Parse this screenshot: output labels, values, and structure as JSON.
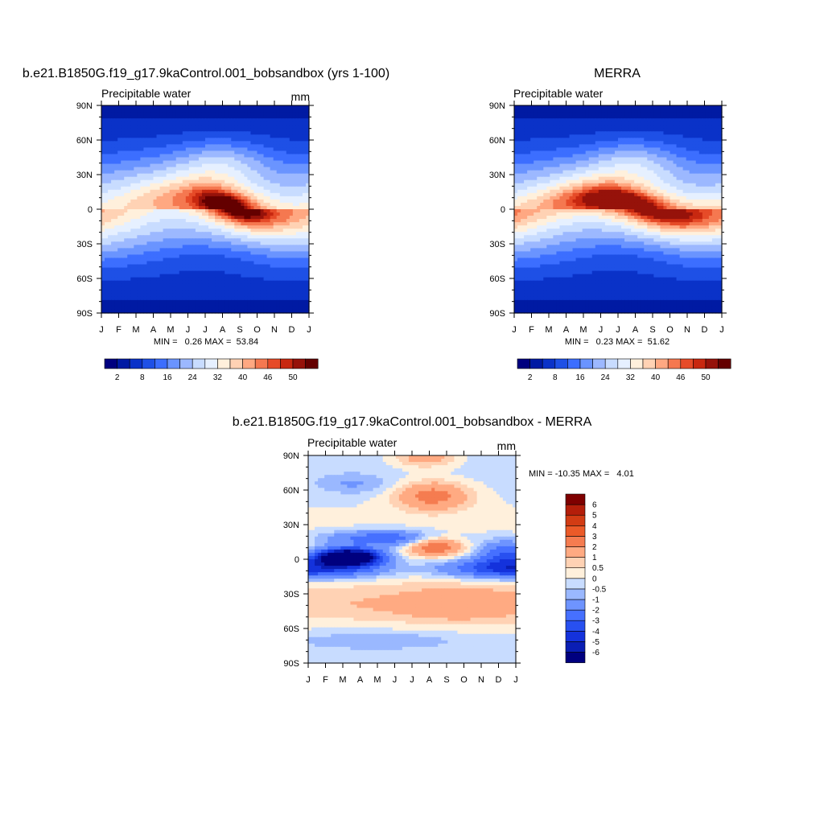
{
  "charts": [
    {
      "title": "b.e21.B1850G.f19_g17.9kaControl.001_bobsandbox (yrs 1-100)",
      "variable": "Precipitable water",
      "units": "mm",
      "stats": "MIN =   0.26 MAX =  53.84"
    },
    {
      "title": "MERRA",
      "variable": "Precipitable water",
      "units": "",
      "stats": "MIN =   0.23 MAX =  51.62"
    },
    {
      "title": "b.e21.B1850G.f19_g17.9kaControl.001_bobsandbox - MERRA",
      "variable": "Precipitable water",
      "units": "mm",
      "stats": "MIN = -10.35 MAX =   4.01"
    }
  ],
  "chart_data": [
    {
      "type": "heatmap",
      "title": "b.e21.B1850G.f19_g17.9kaControl.001_bobsandbox (yrs 1-100)",
      "subtitle": "Precipitable water",
      "units": "mm",
      "xlabel": "",
      "ylabel": "",
      "x_ticks": [
        "J",
        "F",
        "M",
        "A",
        "M",
        "J",
        "J",
        "A",
        "S",
        "O",
        "N",
        "D",
        "J"
      ],
      "y_ticks": [
        "90N",
        "60N",
        "30N",
        "0",
        "30S",
        "60S",
        "90S"
      ],
      "ylim": [
        -90,
        90
      ],
      "min": 0.26,
      "max": 53.84,
      "colorbar": {
        "orientation": "horizontal",
        "levels": [
          0,
          2,
          5,
          8,
          12,
          16,
          20,
          24,
          28,
          32,
          36,
          40,
          43,
          46,
          48,
          50,
          52
        ],
        "labels": [
          "2",
          "8",
          "16",
          "24",
          "32",
          "40",
          "46",
          "50"
        ],
        "colors": [
          "#00007f",
          "#001aa3",
          "#0a32c8",
          "#1e50e6",
          "#3c6eff",
          "#6a94ff",
          "#9cb8ff",
          "#c8dcff",
          "#e6f0ff",
          "#fff0dc",
          "#ffd2b4",
          "#ffa882",
          "#f57850",
          "#e64b28",
          "#c82810",
          "#96120a",
          "#640000"
        ]
      },
      "field_params": {
        "peak": 53,
        "peak_lat": 8,
        "peak_month": 7.5,
        "merra_like": false
      }
    },
    {
      "type": "heatmap",
      "title": "MERRA",
      "subtitle": "Precipitable water",
      "units": "",
      "xlabel": "",
      "ylabel": "",
      "x_ticks": [
        "J",
        "F",
        "M",
        "A",
        "M",
        "J",
        "J",
        "A",
        "S",
        "O",
        "N",
        "D",
        "J"
      ],
      "y_ticks": [
        "90N",
        "60N",
        "30N",
        "0",
        "30S",
        "60S",
        "90S"
      ],
      "ylim": [
        -90,
        90
      ],
      "min": 0.23,
      "max": 51.62,
      "colorbar": {
        "orientation": "horizontal",
        "levels": [
          0,
          2,
          5,
          8,
          12,
          16,
          20,
          24,
          28,
          32,
          36,
          40,
          43,
          46,
          48,
          50,
          52
        ],
        "labels": [
          "2",
          "8",
          "16",
          "24",
          "32",
          "40",
          "46",
          "50"
        ],
        "colors": [
          "#00007f",
          "#001aa3",
          "#0a32c8",
          "#1e50e6",
          "#3c6eff",
          "#6a94ff",
          "#9cb8ff",
          "#c8dcff",
          "#e6f0ff",
          "#fff0dc",
          "#ffd2b4",
          "#ffa882",
          "#f57850",
          "#e64b28",
          "#c82810",
          "#96120a",
          "#640000"
        ]
      },
      "field_params": {
        "peak": 51,
        "peak_lat": 6,
        "peak_month": 7,
        "merra_like": true
      }
    },
    {
      "type": "heatmap",
      "title": "b.e21.B1850G.f19_g17.9kaControl.001_bobsandbox - MERRA",
      "subtitle": "Precipitable water",
      "units": "mm",
      "xlabel": "",
      "ylabel": "",
      "x_ticks": [
        "J",
        "F",
        "M",
        "A",
        "M",
        "J",
        "J",
        "A",
        "S",
        "O",
        "N",
        "D",
        "J"
      ],
      "y_ticks": [
        "90N",
        "60N",
        "30N",
        "0",
        "30S",
        "60S",
        "90S"
      ],
      "ylim": [
        -90,
        90
      ],
      "min": -10.35,
      "max": 4.01,
      "colorbar": {
        "orientation": "vertical",
        "levels": [
          -99,
          -6,
          -5,
          -4,
          -3,
          -2,
          -1,
          -0.5,
          0,
          0.5,
          1,
          2,
          3,
          4,
          5,
          6
        ],
        "labels": [
          "-6",
          "-5",
          "-4",
          "-3",
          "-2",
          "-1",
          "-0.5",
          "0",
          "0.5",
          "1",
          "2",
          "3",
          "4",
          "5",
          "6"
        ],
        "colors": [
          "#00007f",
          "#0a1eb4",
          "#1432dc",
          "#2850f0",
          "#4670ff",
          "#6e94ff",
          "#9ab8ff",
          "#c8dcff",
          "#fff0dc",
          "#ffd2b4",
          "#ffaa82",
          "#f57c50",
          "#eb5a28",
          "#d23c14",
          "#b41e0a",
          "#7f0000"
        ]
      },
      "field_params": {
        "anomaly": true
      }
    }
  ]
}
